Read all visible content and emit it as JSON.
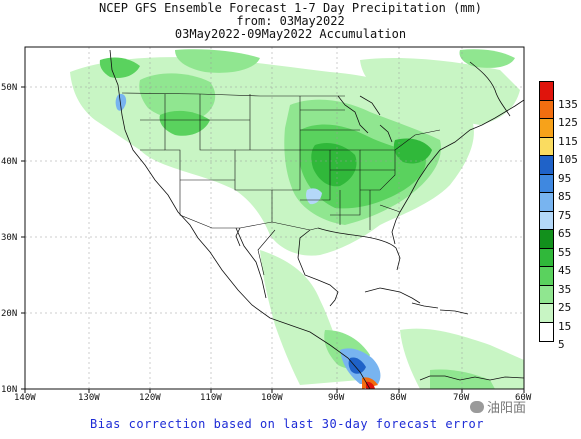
{
  "title": {
    "line1": "NCEP GFS Ensemble Forecast 1-7 Day Precipitation (mm)",
    "line2": "from: 03May2022",
    "line3": "03May2022-09May2022 Accumulation"
  },
  "footer": "Bias correction based on last 30-day forecast error",
  "watermark": "油阳面",
  "axes": {
    "lon_labels": [
      "140W",
      "130W",
      "120W",
      "110W",
      "100W",
      "90W",
      "80W",
      "70W",
      "60W"
    ],
    "lat_labels": [
      "10N",
      "20N",
      "30N",
      "40N",
      "50N"
    ]
  },
  "legend": {
    "levels": [
      {
        "label": "135",
        "color": "#e0140c"
      },
      {
        "label": "125",
        "color": "#f26e10"
      },
      {
        "label": "115",
        "color": "#f7a21a"
      },
      {
        "label": "105",
        "color": "#fadc60"
      },
      {
        "label": "95",
        "color": "#1f62c8"
      },
      {
        "label": "85",
        "color": "#3f88e0"
      },
      {
        "label": "75",
        "color": "#78b4f0"
      },
      {
        "label": "65",
        "color": "#b4d8f8"
      },
      {
        "label": "55",
        "color": "#12901c"
      },
      {
        "label": "45",
        "color": "#30b83a"
      },
      {
        "label": "35",
        "color": "#5ad25e"
      },
      {
        "label": "25",
        "color": "#90e690"
      },
      {
        "label": "15",
        "color": "#c8f5c4"
      },
      {
        "label": "5",
        "color": "#ffffff"
      }
    ]
  }
}
